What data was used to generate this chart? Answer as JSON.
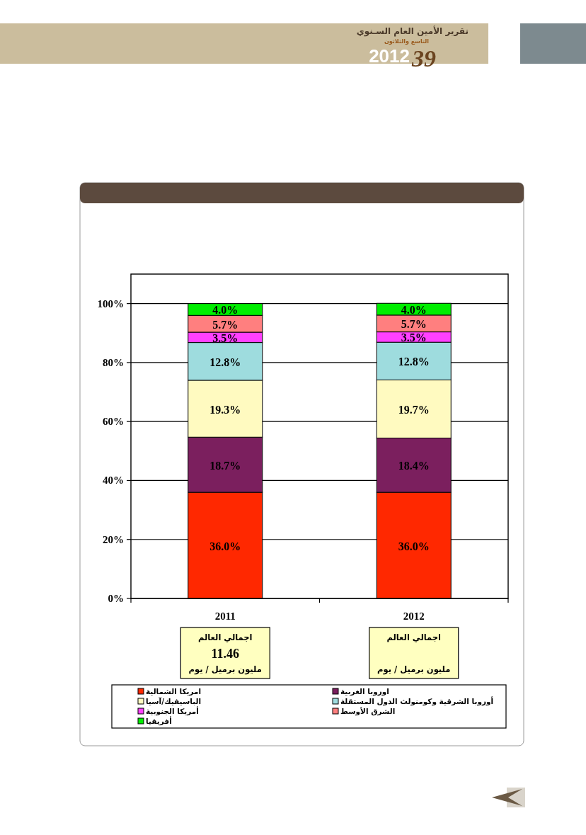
{
  "chart_data": {
    "type": "bar",
    "stacked": true,
    "categories": [
      "2011",
      "2012"
    ],
    "series": [
      {
        "name": "امريكا الشمالية",
        "color": "#ff2800",
        "values": [
          36.0,
          36.0
        ],
        "value_labels": [
          "36.0%",
          "36.0%"
        ]
      },
      {
        "name": "اوروبا الغربية",
        "color": "#7b1f5e",
        "values": [
          18.7,
          18.4
        ],
        "value_labels": [
          "18.7%",
          "18.4%"
        ]
      },
      {
        "name": "الباسيفيك/آسيا",
        "color": "#fffac0",
        "values": [
          19.3,
          19.7
        ],
        "value_labels": [
          "19.3%",
          "19.7%"
        ]
      },
      {
        "name": "أوروبا الشرقية وكومنولث الدول المستقلة",
        "color": "#9edcde",
        "values": [
          12.8,
          12.8
        ],
        "value_labels": [
          "12.8%",
          "12.8%"
        ]
      },
      {
        "name": "أمريكا الجنوبية",
        "color": "#ff40ff",
        "values": [
          3.5,
          3.5
        ],
        "value_labels": [
          "3.5%",
          "3.5%"
        ]
      },
      {
        "name": "الشرق الأوسط",
        "color": "#ff7f7f",
        "values": [
          5.7,
          5.7
        ],
        "value_labels": [
          "5.7%",
          "5.7%"
        ]
      },
      {
        "name": "أفريقيا",
        "color": "#00ee00",
        "values": [
          4.0,
          4.0
        ],
        "value_labels": [
          "4.0%",
          "4.0%"
        ]
      }
    ],
    "ylim": [
      0,
      110
    ],
    "yticks": [
      {
        "value": 0,
        "label": "0%"
      },
      {
        "value": 20,
        "label": "20%"
      },
      {
        "value": 40,
        "label": "40%"
      },
      {
        "value": 60,
        "label": "60%"
      },
      {
        "value": 80,
        "label": "80%"
      },
      {
        "value": 100,
        "label": "100%"
      }
    ],
    "grid": "y",
    "legend": "bottom",
    "annotations": [
      "تقرير الأمين العام السـنوي",
      "التاسع والثلاثون",
      "2012",
      "39",
      "اجمالي العالم",
      "11.46",
      "مليون برميل / يوم",
      "اجمالي العالم",
      "مليون برميل / يوم"
    ]
  }
}
